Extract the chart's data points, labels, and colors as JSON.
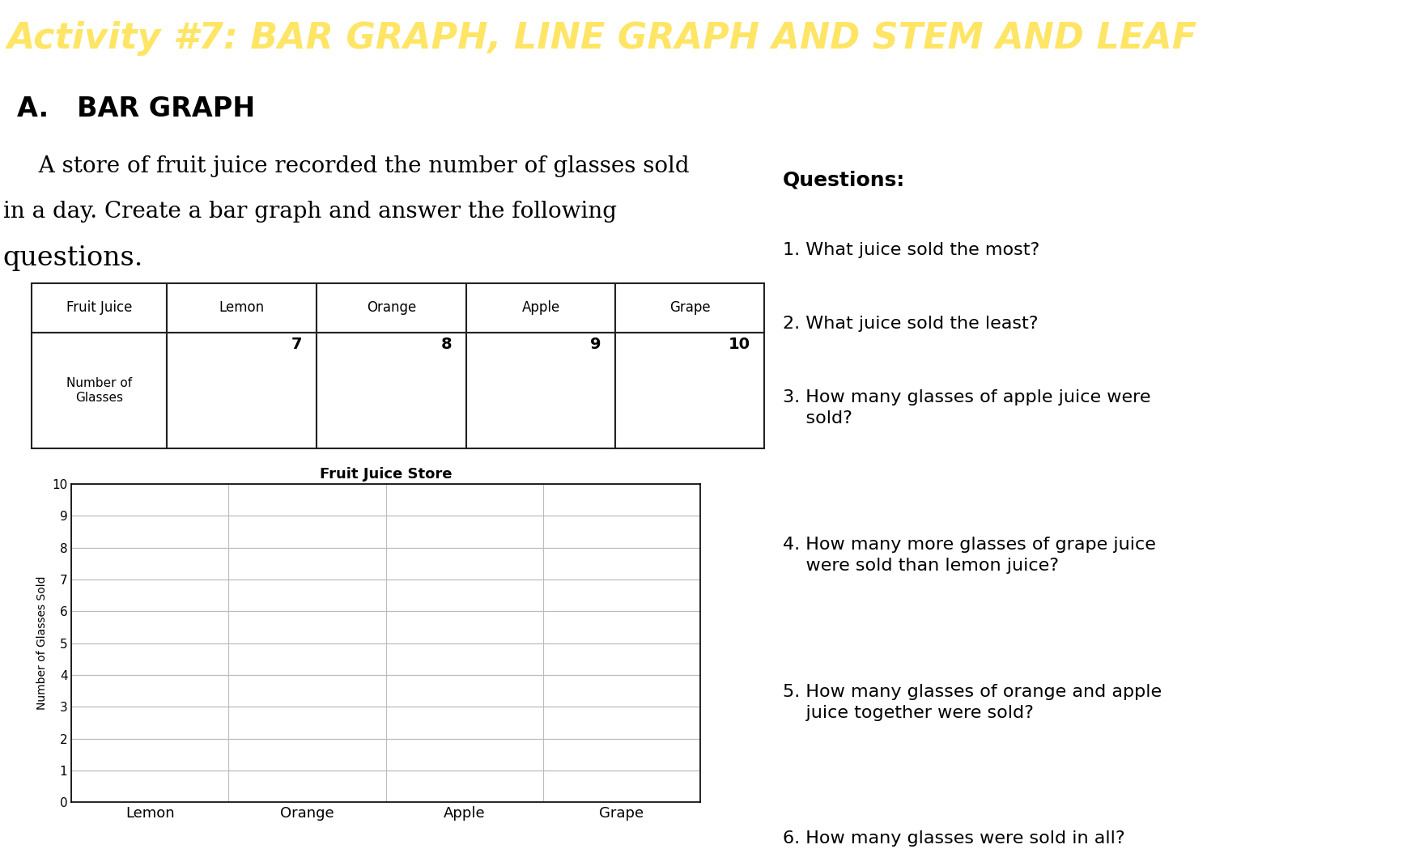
{
  "title": "Activity #7: BAR GRAPH, LINE GRAPH AND STEM AND LEAF",
  "title_bg": "#B8453A",
  "title_color": "#FFE566",
  "title_stroke": "#A0522D",
  "section_label": "A.   BAR GRAPH",
  "paragraph1": "   A store of fruit juice recorded the number of glasses sold",
  "paragraph2": "in a day. Create a bar graph and answer the following",
  "paragraph3": "questions.",
  "table_headers": [
    "Fruit Juice",
    "Lemon",
    "Orange",
    "Apple",
    "Grape"
  ],
  "table_row_label": "Number of\nGlasses",
  "table_values": [
    "7",
    "8",
    "9",
    "10"
  ],
  "bar_chart_title": "Fruit Juice Store",
  "bar_categories": [
    "Lemon",
    "Orange",
    "Apple",
    "Grape"
  ],
  "bar_ylim": [
    0,
    10
  ],
  "bar_yticks": [
    0,
    1,
    2,
    3,
    4,
    5,
    6,
    7,
    8,
    9,
    10
  ],
  "bar_ylabel": "Number of Glasses Sold",
  "questions_title": "Questions:",
  "questions": [
    "1. What juice sold the most?",
    "2. What juice sold the least?",
    "3. How many glasses of apple juice were\n    sold?",
    "4. How many more glasses of grape juice\n    were sold than lemon juice?",
    "5. How many glasses of orange and apple\n    juice together were sold?",
    "6. How many glasses were sold in all?"
  ],
  "bg_color": "#FFFFFF",
  "grid_color": "#BBBBBB",
  "table_border_color": "#222222",
  "bottom_stripe_color": "#B8453A"
}
